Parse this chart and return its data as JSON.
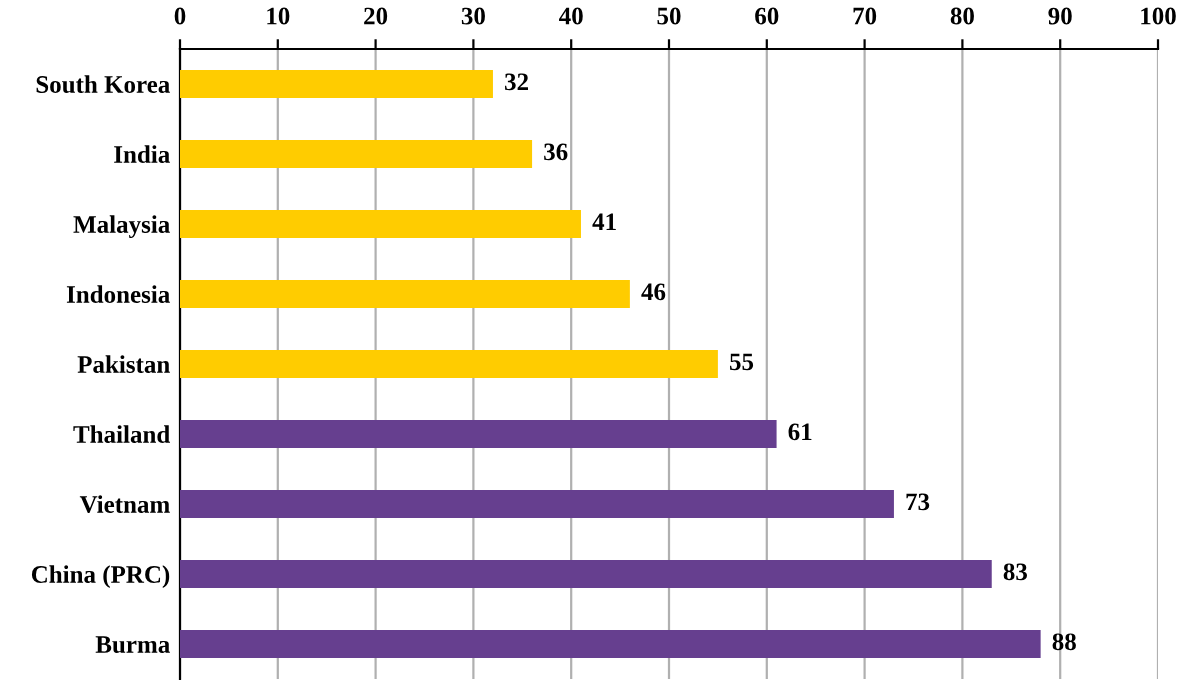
{
  "chart_data": {
    "type": "bar",
    "orientation": "horizontal",
    "categories": [
      "South Korea",
      "India",
      "Malaysia",
      "Indonesia",
      "Pakistan",
      "Thailand",
      "Vietnam",
      "China (PRC)",
      "Burma"
    ],
    "values": [
      32,
      36,
      41,
      46,
      55,
      61,
      73,
      83,
      88
    ],
    "colors": [
      "#ffcc00",
      "#ffcc00",
      "#ffcc00",
      "#ffcc00",
      "#ffcc00",
      "#663f8f",
      "#663f8f",
      "#663f8f",
      "#663f8f"
    ],
    "xlim": [
      0,
      100
    ],
    "xticks": [
      0,
      10,
      20,
      30,
      40,
      50,
      60,
      70,
      80,
      90,
      100
    ],
    "grid": "x",
    "data_labels": true
  }
}
